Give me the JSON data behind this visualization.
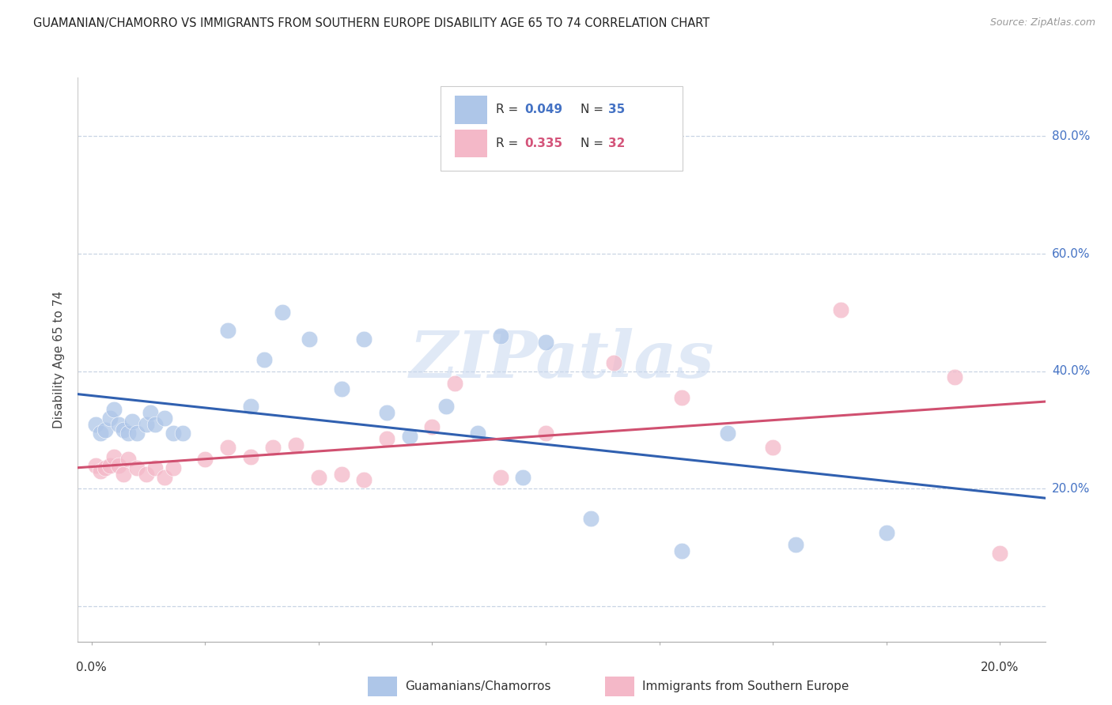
{
  "title": "GUAMANIAN/CHAMORRO VS IMMIGRANTS FROM SOUTHERN EUROPE DISABILITY AGE 65 TO 74 CORRELATION CHART",
  "source": "Source: ZipAtlas.com",
  "ylabel": "Disability Age 65 to 74",
  "R1": 0.049,
  "N1": 35,
  "R2": 0.335,
  "N2": 32,
  "color_blue": "#aec6e8",
  "color_pink": "#f4b8c8",
  "color_blue_text": "#4472c4",
  "color_pink_text": "#d4547a",
  "color_line_blue": "#3060b0",
  "color_line_pink": "#d05070",
  "watermark_color": "#c8d8f0",
  "bg_color": "#ffffff",
  "grid_color": "#c8d4e4",
  "legend1_label": "Guamanians/Chamorros",
  "legend2_label": "Immigrants from Southern Europe",
  "blue_x": [
    0.001,
    0.002,
    0.003,
    0.004,
    0.005,
    0.006,
    0.007,
    0.008,
    0.009,
    0.01,
    0.012,
    0.013,
    0.014,
    0.016,
    0.018,
    0.02,
    0.03,
    0.035,
    0.038,
    0.042,
    0.048,
    0.055,
    0.06,
    0.065,
    0.07,
    0.078,
    0.085,
    0.09,
    0.095,
    0.1,
    0.11,
    0.13,
    0.14,
    0.155,
    0.175
  ],
  "blue_y": [
    0.31,
    0.295,
    0.3,
    0.32,
    0.335,
    0.31,
    0.3,
    0.295,
    0.315,
    0.295,
    0.31,
    0.33,
    0.31,
    0.32,
    0.295,
    0.295,
    0.47,
    0.34,
    0.42,
    0.5,
    0.455,
    0.37,
    0.455,
    0.33,
    0.29,
    0.34,
    0.295,
    0.46,
    0.22,
    0.45,
    0.15,
    0.095,
    0.295,
    0.105,
    0.125
  ],
  "pink_x": [
    0.001,
    0.002,
    0.003,
    0.004,
    0.005,
    0.006,
    0.007,
    0.008,
    0.01,
    0.012,
    0.014,
    0.016,
    0.018,
    0.025,
    0.03,
    0.035,
    0.04,
    0.045,
    0.05,
    0.055,
    0.06,
    0.065,
    0.075,
    0.08,
    0.09,
    0.1,
    0.115,
    0.13,
    0.15,
    0.165,
    0.19,
    0.2
  ],
  "pink_y": [
    0.24,
    0.23,
    0.235,
    0.24,
    0.255,
    0.24,
    0.225,
    0.25,
    0.235,
    0.225,
    0.235,
    0.22,
    0.235,
    0.25,
    0.27,
    0.255,
    0.27,
    0.275,
    0.22,
    0.225,
    0.215,
    0.285,
    0.305,
    0.38,
    0.22,
    0.295,
    0.415,
    0.355,
    0.27,
    0.505,
    0.39,
    0.09
  ],
  "xlim": [
    -0.003,
    0.21
  ],
  "ylim": [
    -0.06,
    0.9
  ],
  "yticks": [
    0.0,
    0.2,
    0.4,
    0.6,
    0.8
  ]
}
